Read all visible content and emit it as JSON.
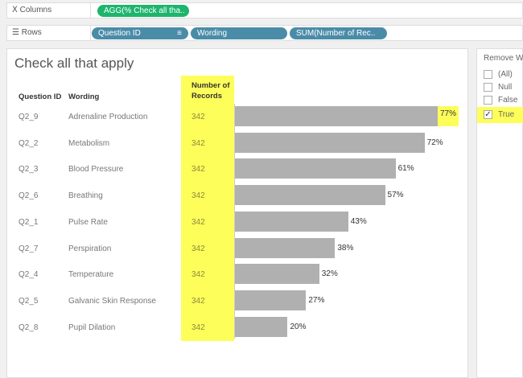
{
  "shelves": {
    "columns": {
      "label": "Columns",
      "icon": "columns-icon",
      "pills": [
        "AGG(% Check all tha.."
      ]
    },
    "rows": {
      "label": "Rows",
      "icon": "rows-icon",
      "pills": [
        "Question ID",
        "Wording",
        "SUM(Number of Rec.."
      ]
    }
  },
  "sheet": {
    "title": "Check all that apply",
    "headers": {
      "qid": "Question ID",
      "wording": "Wording",
      "count": "Number of Records"
    }
  },
  "chart_data": {
    "type": "bar",
    "categories": [
      "Q2_9",
      "Q2_2",
      "Q2_3",
      "Q2_6",
      "Q2_1",
      "Q2_7",
      "Q2_4",
      "Q2_5",
      "Q2_8"
    ],
    "wording": [
      "Adrenaline Production",
      "Metabolism",
      "Blood Pressure",
      "Breathing",
      "Pulse Rate",
      "Perspiration",
      "Temperature",
      "Galvanic Skin Response",
      "Pupil Dilation"
    ],
    "records": [
      342,
      342,
      342,
      342,
      342,
      342,
      342,
      342,
      342
    ],
    "values": [
      77,
      72,
      61,
      57,
      43,
      38,
      32,
      27,
      20
    ],
    "labels": [
      "77%",
      "72%",
      "61%",
      "57%",
      "43%",
      "38%",
      "32%",
      "27%",
      "20%"
    ],
    "highlight_color": "#fefe5a",
    "bar_color": "#b0b0b0"
  },
  "filter": {
    "title": "Remove W",
    "items": [
      {
        "label": "(All)",
        "checked": false
      },
      {
        "label": "Null",
        "checked": false
      },
      {
        "label": "False",
        "checked": false
      },
      {
        "label": "True",
        "checked": true
      }
    ]
  }
}
